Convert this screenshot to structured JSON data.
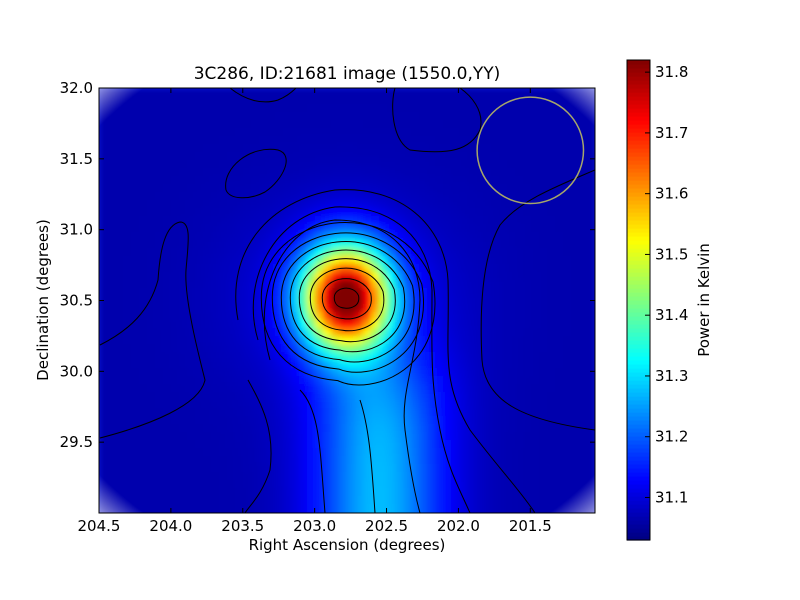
{
  "chart_data": {
    "type": "heatmap",
    "title": "3C286, ID:21681 image (1550.0,YY)",
    "xlabel": "Right Ascension (degrees)",
    "ylabel": "Declination (degrees)",
    "colorbar_label": "Power in Kelvin",
    "xlim": [
      204.5,
      201.05
    ],
    "ylim": [
      29.0,
      32.0
    ],
    "x_ticks": [
      204.5,
      204.0,
      203.5,
      203.0,
      202.5,
      202.0,
      201.5
    ],
    "x_tick_labels": [
      "204.5",
      "204.0",
      "203.5",
      "203.0",
      "202.5",
      "202.0",
      "201.5"
    ],
    "y_ticks": [
      29.5,
      30.0,
      30.5,
      31.0,
      31.5,
      32.0
    ],
    "y_tick_labels": [
      "29.5",
      "30.0",
      "30.5",
      "31.0",
      "31.5",
      "32.0"
    ],
    "colorbar_range": [
      31.03,
      31.82
    ],
    "colorbar_ticks": [
      31.1,
      31.2,
      31.3,
      31.4,
      31.5,
      31.6,
      31.7,
      31.8
    ],
    "colorbar_tick_labels": [
      "31.1",
      "31.2",
      "31.3",
      "31.4",
      "31.5",
      "31.6",
      "31.7",
      "31.8"
    ],
    "colormap": "jet",
    "peak": {
      "ra": 202.78,
      "dec": 30.52,
      "value": 31.82
    },
    "beam_circle": {
      "ra": 201.5,
      "dec": 31.56,
      "radius_deg": 0.37,
      "color": "#a6a66a"
    },
    "contours": "black",
    "grid": false
  }
}
